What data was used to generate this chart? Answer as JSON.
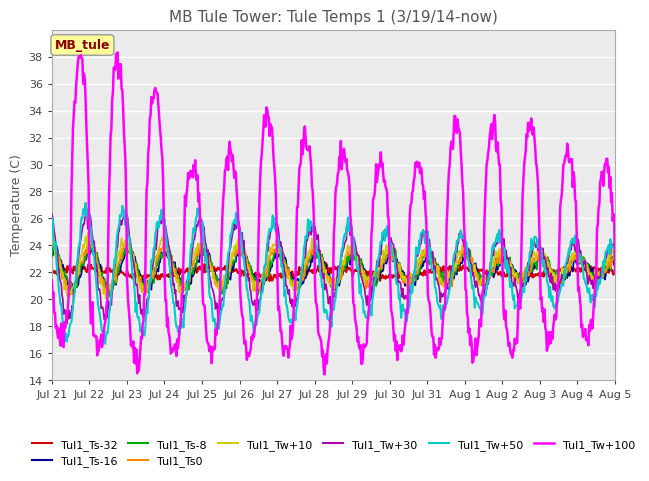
{
  "title": "MB Tule Tower: Tule Temps 1 (3/19/14-now)",
  "ylabel": "Temperature (C)",
  "ylim": [
    14,
    40
  ],
  "yticks": [
    14,
    16,
    18,
    20,
    22,
    24,
    26,
    28,
    30,
    32,
    34,
    36,
    38
  ],
  "background_color": "#ffffff",
  "plot_bg_color": "#ebebeb",
  "grid_color": "#ffffff",
  "annotation_label": "MB_tule",
  "series": [
    {
      "label": "Tul1_Ts-32",
      "color": "#cc0000",
      "lw": 1.5
    },
    {
      "label": "Tul1_Ts-16",
      "color": "#000099",
      "lw": 1.2
    },
    {
      "label": "Tul1_Ts-8",
      "color": "#00aa00",
      "lw": 1.2
    },
    {
      "label": "Tul1_Ts0",
      "color": "#ff8800",
      "lw": 1.2
    },
    {
      "label": "Tul1_Tw+10",
      "color": "#cccc00",
      "lw": 1.2
    },
    {
      "label": "Tul1_Tw+30",
      "color": "#aa00aa",
      "lw": 1.2
    },
    {
      "label": "Tul1_Tw+50",
      "color": "#00cccc",
      "lw": 1.5
    },
    {
      "label": "Tul1_Tw+100",
      "color": "#ff00ff",
      "lw": 1.8
    }
  ],
  "xtick_labels": [
    "Jul 21",
    "Jul 22",
    "Jul 23",
    "Jul 24",
    "Jul 25",
    "Jul 26",
    "Jul 27",
    "Jul 28",
    "Jul 29",
    "Jul 30",
    "Jul 31",
    "Aug 1",
    "Aug 2",
    "Aug 3",
    "Aug 4",
    "Aug 5"
  ]
}
